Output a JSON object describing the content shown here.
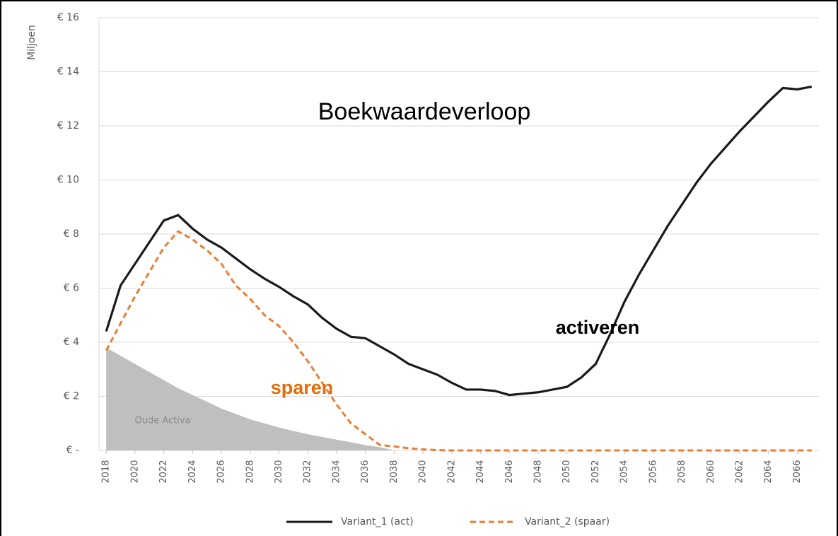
{
  "chart_data": {
    "type": "line",
    "title": "Boekwaardeverloop",
    "y_label": "Miljoen",
    "annotations": [
      "activeren",
      "sparen"
    ],
    "x": [
      2018,
      2019,
      2020,
      2021,
      2022,
      2023,
      2024,
      2025,
      2026,
      2027,
      2028,
      2029,
      2030,
      2031,
      2032,
      2033,
      2034,
      2035,
      2036,
      2037,
      2038,
      2039,
      2040,
      2041,
      2042,
      2043,
      2044,
      2045,
      2046,
      2047,
      2048,
      2049,
      2050,
      2051,
      2052,
      2053,
      2054,
      2055,
      2056,
      2057,
      2058,
      2059,
      2060,
      2061,
      2062,
      2063,
      2064,
      2065,
      2066,
      2067
    ],
    "xlim": [
      2017.5,
      2067.5
    ],
    "xticks": [
      2018,
      2020,
      2022,
      2024,
      2026,
      2028,
      2030,
      2032,
      2034,
      2036,
      2038,
      2040,
      2042,
      2044,
      2046,
      2048,
      2050,
      2052,
      2054,
      2056,
      2058,
      2060,
      2062,
      2064,
      2066
    ],
    "ylim": [
      0,
      16
    ],
    "yticks": [
      {
        "value": 0,
        "label": "€ -"
      },
      {
        "value": 2,
        "label": "€ 2"
      },
      {
        "value": 4,
        "label": "€ 4"
      },
      {
        "value": 6,
        "label": "€ 6"
      },
      {
        "value": 8,
        "label": "€ 8"
      },
      {
        "value": 10,
        "label": "€ 10"
      },
      {
        "value": 12,
        "label": "€ 12"
      },
      {
        "value": 14,
        "label": "€ 14"
      },
      {
        "value": 16,
        "label": "€ 16"
      }
    ],
    "grid": true,
    "legend": "bottom",
    "series": [
      {
        "name": "Oude Activa",
        "color": "#bfbfbf",
        "style": "area",
        "values": [
          3.8,
          3.5,
          3.2,
          2.9,
          2.6,
          2.3,
          2.05,
          1.8,
          1.55,
          1.35,
          1.15,
          1.0,
          0.85,
          0.72,
          0.6,
          0.5,
          0.4,
          0.3,
          0.2,
          0.12,
          0,
          0,
          0,
          0,
          0,
          0,
          0,
          0,
          0,
          0,
          0,
          0,
          0,
          0,
          0,
          0,
          0,
          0,
          0,
          0,
          0,
          0,
          0,
          0,
          0,
          0,
          0,
          0,
          0,
          0
        ]
      },
      {
        "name": "Variant_1 (act)",
        "color": "#1a1a1a",
        "style": "solid",
        "values": [
          4.4,
          6.1,
          6.9,
          7.7,
          8.5,
          8.7,
          8.2,
          7.8,
          7.5,
          7.1,
          6.7,
          6.35,
          6.05,
          5.7,
          5.4,
          4.9,
          4.5,
          4.2,
          4.15,
          3.85,
          3.55,
          3.2,
          3.0,
          2.8,
          2.5,
          2.25,
          2.25,
          2.2,
          2.05,
          2.1,
          2.15,
          2.25,
          2.35,
          2.7,
          3.2,
          4.3,
          5.5,
          6.5,
          7.4,
          8.3,
          9.1,
          9.9,
          10.6,
          11.2,
          11.8,
          12.35,
          12.9,
          13.4,
          13.35,
          13.45
        ]
      },
      {
        "name": "Variant_2 (spaar)",
        "color": "#ed7d31",
        "style": "dashed",
        "values": [
          3.7,
          4.7,
          5.7,
          6.6,
          7.5,
          8.1,
          7.8,
          7.4,
          6.9,
          6.1,
          5.6,
          5.0,
          4.6,
          4.0,
          3.3,
          2.5,
          1.7,
          1.0,
          0.6,
          0.2,
          0.15,
          0.08,
          0.04,
          0.01,
          0,
          0,
          0,
          0,
          0,
          0,
          0,
          0,
          0,
          0,
          0,
          0,
          0,
          0,
          0,
          0,
          0,
          0,
          0,
          0,
          0,
          0,
          0,
          0,
          0,
          0
        ]
      }
    ]
  }
}
